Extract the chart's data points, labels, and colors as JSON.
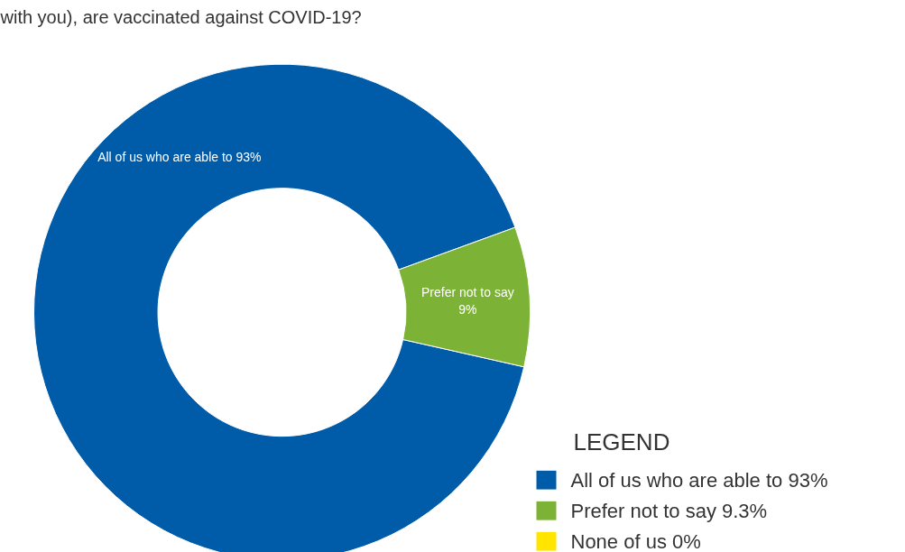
{
  "chart_data": {
    "type": "donut",
    "title": "with you), are vaccinated against COVID-19?",
    "categories": [
      "All of us who are able to 93%",
      "Prefer not to say 9.3%",
      "None of us 0%"
    ],
    "values": [
      93,
      9.3,
      0
    ],
    "colors": [
      "#005ca9",
      "#7cb235",
      "#ffe500"
    ],
    "value_labels": [
      "All of us who are able to 93%",
      "Prefer not to say\n9%",
      null
    ],
    "legend_title": "LEGEND",
    "legend": "bottom right"
  }
}
